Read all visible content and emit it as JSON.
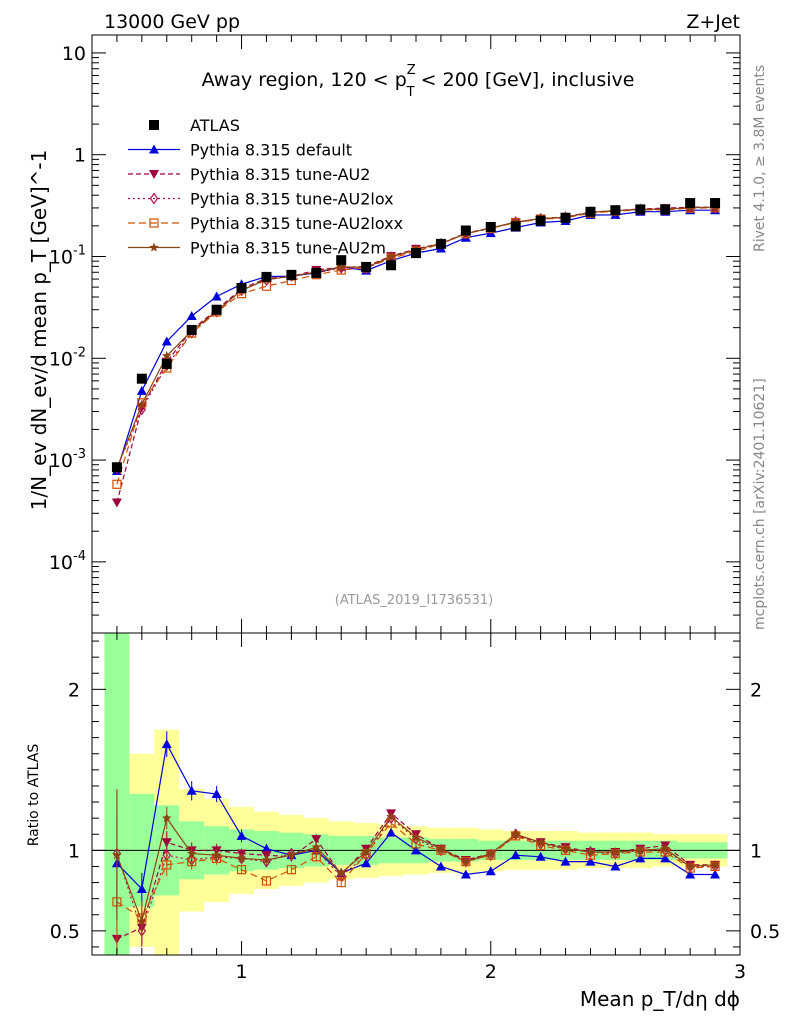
{
  "header": {
    "left": "13000 GeV pp",
    "right": "Z+Jet",
    "title": "Away region, 120 < p_T^Z < 200 [GeV], inclusive",
    "title_pre": "Away region, 120 < p",
    "title_sup": "Z",
    "title_sub": "T",
    "title_post": " < 200 [GeV], inclusive",
    "watermark": "(ATLAS_2019_I1736531)",
    "side_top": "Rivet 4.1.0, ≥ 3.8M events",
    "side_bottom": "mcplots.cern.ch [arXiv:2401.10621]"
  },
  "axes": {
    "ylabel_main": "1/N_ev dN_ev/d mean p_T [GeV]^-1",
    "ylabel_ratio": "Ratio to ATLAS",
    "xlabel": "Mean p_T/dη dϕ",
    "x_ticks": [
      "1",
      "2",
      "3"
    ],
    "y_main_ticks": [
      "10^-4",
      "10^-3",
      "10^-2",
      "10^-1",
      "1",
      "10"
    ],
    "y_ratio_ticks": [
      "0.5",
      "1",
      "2"
    ]
  },
  "chart_data": {
    "type": "line",
    "title": "Away region, 120 < p_T^Z < 200 [GeV], inclusive",
    "xlabel": "Mean p_T/dη dϕ",
    "ylabel": "1/N_ev dN_ev/d mean p_T [GeV]^-1",
    "xlim": [
      0.4,
      3.0
    ],
    "ylim": [
      2e-05,
      15
    ],
    "yscale": "log",
    "ratio_ylim": [
      0.35,
      2.35
    ],
    "legend_position": "top-left",
    "x": [
      0.5,
      0.6,
      0.7,
      0.8,
      0.9,
      1.0,
      1.1,
      1.2,
      1.3,
      1.4,
      1.5,
      1.6,
      1.7,
      1.8,
      1.9,
      2.0,
      2.1,
      2.2,
      2.3,
      2.4,
      2.5,
      2.6,
      2.7,
      2.8,
      2.9
    ],
    "data": {
      "name": "ATLAS",
      "values": [
        0.00085,
        0.0063,
        0.0088,
        0.019,
        0.03,
        0.049,
        0.063,
        0.066,
        0.069,
        0.092,
        0.079,
        0.082,
        0.108,
        0.133,
        0.18,
        0.195,
        0.198,
        0.225,
        0.24,
        0.275,
        0.285,
        0.29,
        0.29,
        0.335,
        0.335
      ]
    },
    "band_edges": [
      0.45,
      0.55,
      0.65,
      0.75,
      0.85,
      0.95,
      1.05,
      1.15,
      1.25,
      1.35,
      1.45,
      1.55,
      1.65,
      1.75,
      1.85,
      1.95,
      2.05,
      2.15,
      2.25,
      2.35,
      2.45,
      2.55,
      2.65,
      2.75,
      2.85,
      2.95
    ],
    "band_stat_half": [
      1.4,
      0.35,
      0.28,
      0.18,
      0.15,
      0.13,
      0.12,
      0.11,
      0.1,
      0.09,
      0.09,
      0.08,
      0.08,
      0.07,
      0.07,
      0.06,
      0.06,
      0.06,
      0.06,
      0.06,
      0.06,
      0.06,
      0.06,
      0.05,
      0.05
    ],
    "band_total_half": [
      1.4,
      0.6,
      0.75,
      0.38,
      0.32,
      0.27,
      0.24,
      0.22,
      0.2,
      0.18,
      0.17,
      0.16,
      0.15,
      0.14,
      0.14,
      0.13,
      0.12,
      0.12,
      0.12,
      0.11,
      0.11,
      0.11,
      0.1,
      0.1,
      0.1
    ],
    "series": [
      {
        "name": "Pythia 8.315 default",
        "color": "#0000dd",
        "marker": "triangle-up",
        "dash": "",
        "ratio": [
          0.92,
          0.76,
          1.66,
          1.37,
          1.35,
          1.09,
          1.01,
          0.97,
          1.0,
          0.86,
          0.92,
          1.11,
          1.0,
          0.9,
          0.85,
          0.87,
          0.97,
          0.96,
          0.93,
          0.93,
          0.9,
          0.95,
          0.95,
          0.85,
          0.85
        ],
        "ratio_err": [
          0.3,
          0.1,
          0.08,
          0.06,
          0.05,
          0.04,
          0.03,
          0.03,
          0.03,
          0.03,
          0.02,
          0.02,
          0.02,
          0.02,
          0.02,
          0.02,
          0.02,
          0.02,
          0.02,
          0.02,
          0.02,
          0.02,
          0.02,
          0.02,
          0.02
        ]
      },
      {
        "name": "Pythia 8.315 tune-AU2",
        "color": "#a0003c",
        "marker": "triangle-down",
        "dash": "5,3",
        "ratio": [
          0.45,
          0.52,
          1.05,
          1.0,
          1.0,
          0.98,
          0.97,
          0.96,
          1.07,
          0.85,
          1.01,
          1.23,
          1.1,
          1.01,
          0.94,
          0.98,
          1.09,
          1.05,
          1.02,
          0.99,
          0.99,
          1.01,
          1.03,
          0.91,
          0.91
        ],
        "ratio_err": [
          0.4,
          0.1,
          0.07,
          0.05,
          0.04,
          0.03,
          0.03,
          0.03,
          0.03,
          0.03,
          0.02,
          0.02,
          0.02,
          0.02,
          0.02,
          0.02,
          0.02,
          0.02,
          0.02,
          0.02,
          0.02,
          0.02,
          0.02,
          0.02,
          0.02
        ]
      },
      {
        "name": "Pythia 8.315 tune-AU2lox",
        "color": "#b01050",
        "marker": "diamond-open",
        "dash": "2,3",
        "ratio": [
          0.98,
          0.5,
          0.97,
          0.94,
          0.96,
          0.95,
          0.93,
          0.98,
          1.0,
          0.84,
          0.97,
          1.2,
          1.07,
          1.0,
          0.93,
          0.97,
          1.1,
          1.04,
          1.01,
          0.99,
          0.98,
          1.0,
          1.0,
          0.9,
          0.9
        ],
        "ratio_err": [
          0.4,
          0.1,
          0.07,
          0.05,
          0.04,
          0.03,
          0.03,
          0.03,
          0.03,
          0.03,
          0.02,
          0.02,
          0.02,
          0.02,
          0.02,
          0.02,
          0.02,
          0.02,
          0.02,
          0.02,
          0.02,
          0.02,
          0.02,
          0.02,
          0.02
        ]
      },
      {
        "name": "Pythia 8.315 tune-AU2loxx",
        "color": "#d05000",
        "marker": "square-open",
        "dash": "7,4",
        "ratio": [
          0.68,
          0.58,
          0.91,
          0.93,
          0.95,
          0.88,
          0.81,
          0.88,
          0.96,
          0.8,
          0.98,
          1.17,
          1.04,
          1.0,
          0.93,
          0.97,
          1.09,
          1.03,
          1.0,
          0.97,
          0.98,
          0.99,
          0.99,
          0.89,
          0.9
        ],
        "ratio_err": [
          0.5,
          0.1,
          0.07,
          0.05,
          0.04,
          0.03,
          0.03,
          0.03,
          0.03,
          0.03,
          0.02,
          0.02,
          0.02,
          0.02,
          0.02,
          0.02,
          0.02,
          0.02,
          0.02,
          0.02,
          0.02,
          0.02,
          0.02,
          0.02,
          0.02
        ]
      },
      {
        "name": "Pythia 8.315 tune-AU2m",
        "color": "#8b4513",
        "marker": "star",
        "dash": "",
        "ratio": [
          0.97,
          0.56,
          1.2,
          0.98,
          0.97,
          0.95,
          0.94,
          0.97,
          1.02,
          0.86,
          0.99,
          1.21,
          1.08,
          1.01,
          0.93,
          0.98,
          1.1,
          1.05,
          1.01,
          0.99,
          0.99,
          1.0,
          1.01,
          0.9,
          0.91
        ],
        "ratio_err": [
          0.4,
          0.1,
          0.07,
          0.05,
          0.04,
          0.03,
          0.03,
          0.03,
          0.03,
          0.03,
          0.02,
          0.02,
          0.02,
          0.02,
          0.02,
          0.02,
          0.02,
          0.02,
          0.02,
          0.02,
          0.02,
          0.02,
          0.02,
          0.02,
          0.02
        ]
      }
    ]
  }
}
